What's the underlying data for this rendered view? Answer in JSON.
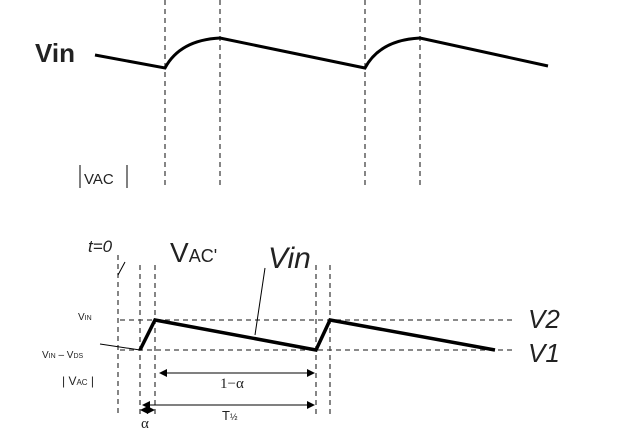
{
  "top": {
    "vin": "Vin",
    "vac": "VAC"
  },
  "bottom": {
    "t0": "t=0",
    "vac_prime": {
      "base": "V",
      "sub": "AC'"
    },
    "vin": "Vin",
    "v2": "V2",
    "v1": "V1",
    "v_in": {
      "base": "V",
      "sub": "IN"
    },
    "v_in_minus_vds": {
      "base1": "V",
      "sub1": "IN",
      "minus": " – ",
      "base2": "V",
      "sub2": "DS"
    },
    "vac_abs": {
      "open": "| V",
      "sub": "AC",
      "close": " |"
    },
    "one_minus_alpha": "1−α",
    "alpha": "α",
    "t_half": {
      "base": "T",
      "sub": "½"
    }
  }
}
